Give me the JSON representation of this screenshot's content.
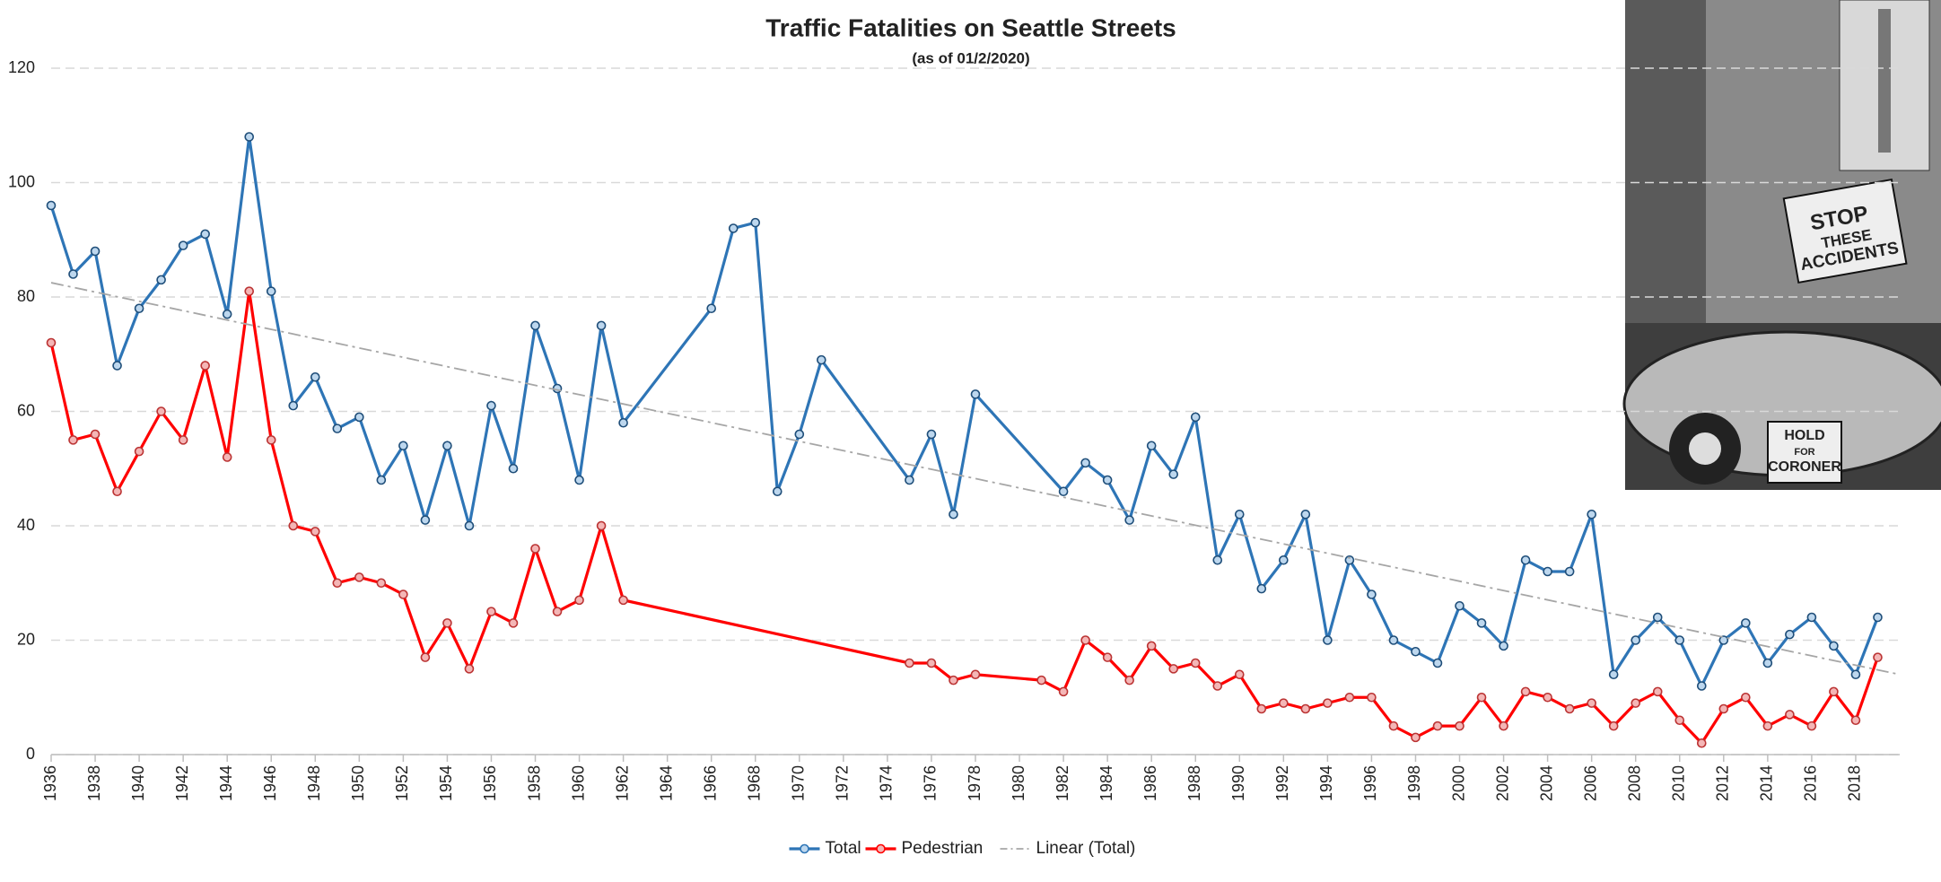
{
  "chart_data": {
    "type": "line",
    "title": "Traffic Fatalities on Seattle Streets",
    "subtitle": "(as of 01/2/2020)",
    "xlim": [
      1936,
      2020
    ],
    "xticks": [
      1936,
      1938,
      1940,
      1942,
      1944,
      1946,
      1948,
      1950,
      1952,
      1954,
      1956,
      1958,
      1960,
      1962,
      1964,
      1966,
      1968,
      1970,
      1972,
      1974,
      1976,
      1978,
      1980,
      1982,
      1984,
      1986,
      1988,
      1990,
      1992,
      1994,
      1996,
      1998,
      2000,
      2002,
      2004,
      2006,
      2008,
      2010,
      2012,
      2014,
      2016,
      2018
    ],
    "ylim": [
      0,
      120
    ],
    "yticks": [
      0,
      20,
      40,
      60,
      80,
      100,
      120
    ],
    "grid": true,
    "legend": "bottom",
    "series": [
      {
        "name": "Total",
        "color": "#2e75b6",
        "marker_fill": "#bdd7ee",
        "dash": false,
        "x": [
          1936,
          1937,
          1938,
          1939,
          1940,
          1941,
          1942,
          1943,
          1944,
          1945,
          1946,
          1947,
          1948,
          1949,
          1950,
          1951,
          1952,
          1953,
          1954,
          1955,
          1956,
          1957,
          1958,
          1959,
          1960,
          1961,
          1962,
          1966,
          1967,
          1968,
          1969,
          1970,
          1971,
          1975,
          1976,
          1977,
          1978,
          1982,
          1983,
          1984,
          1985,
          1986,
          1987,
          1988,
          1989,
          1990,
          1991,
          1992,
          1993,
          1994,
          1995,
          1996,
          1997,
          1998,
          1999,
          2000,
          2001,
          2002,
          2003,
          2004,
          2005,
          2006,
          2007,
          2008,
          2009,
          2010,
          2011,
          2012,
          2013,
          2014,
          2015,
          2016,
          2017,
          2018,
          2019
        ],
        "values": [
          96,
          84,
          88,
          68,
          78,
          83,
          89,
          91,
          77,
          108,
          81,
          61,
          66,
          57,
          59,
          48,
          54,
          41,
          54,
          40,
          61,
          50,
          75,
          64,
          48,
          75,
          58,
          78,
          92,
          93,
          46,
          56,
          69,
          48,
          56,
          42,
          63,
          46,
          51,
          48,
          41,
          54,
          49,
          59,
          34,
          42,
          29,
          34,
          42,
          20,
          34,
          28,
          20,
          18,
          16,
          26,
          23,
          19,
          34,
          32,
          32,
          42,
          14,
          20,
          24,
          20,
          12,
          20,
          23,
          16,
          21,
          24,
          19,
          14,
          24
        ]
      },
      {
        "name": "Pedestrian",
        "color": "#ff0000",
        "marker_fill": "#f4b6b6",
        "dash": false,
        "x": [
          1936,
          1937,
          1938,
          1939,
          1940,
          1941,
          1942,
          1943,
          1944,
          1945,
          1946,
          1947,
          1948,
          1949,
          1950,
          1951,
          1952,
          1953,
          1954,
          1955,
          1956,
          1957,
          1958,
          1959,
          1960,
          1961,
          1962,
          1975,
          1976,
          1977,
          1978,
          1981,
          1982,
          1983,
          1984,
          1985,
          1986,
          1987,
          1988,
          1989,
          1990,
          1991,
          1992,
          1993,
          1994,
          1995,
          1996,
          1997,
          1998,
          1999,
          2000,
          2001,
          2002,
          2003,
          2004,
          2005,
          2006,
          2007,
          2008,
          2009,
          2010,
          2011,
          2012,
          2013,
          2014,
          2015,
          2016,
          2017,
          2018,
          2019
        ],
        "values": [
          72,
          55,
          56,
          46,
          53,
          60,
          55,
          68,
          52,
          81,
          55,
          40,
          39,
          30,
          31,
          30,
          28,
          17,
          23,
          15,
          25,
          23,
          36,
          25,
          27,
          40,
          27,
          16,
          16,
          13,
          14,
          13,
          11,
          20,
          17,
          13,
          19,
          15,
          16,
          12,
          14,
          8,
          9,
          8,
          9,
          10,
          10,
          5,
          3,
          5,
          5,
          10,
          5,
          11,
          10,
          8,
          9,
          5,
          9,
          11,
          6,
          2,
          8,
          10,
          5,
          7,
          5,
          11,
          6,
          17
        ]
      },
      {
        "name": "Linear (Total)",
        "color": "#a6a6a6",
        "dash": true,
        "x": [
          1936,
          2020
        ],
        "values": [
          82.5,
          14
        ]
      }
    ],
    "image_text": [
      "STOP",
      "THESE",
      "ACCIDENTS",
      "HOLD",
      "FOR",
      "CORONER"
    ]
  }
}
